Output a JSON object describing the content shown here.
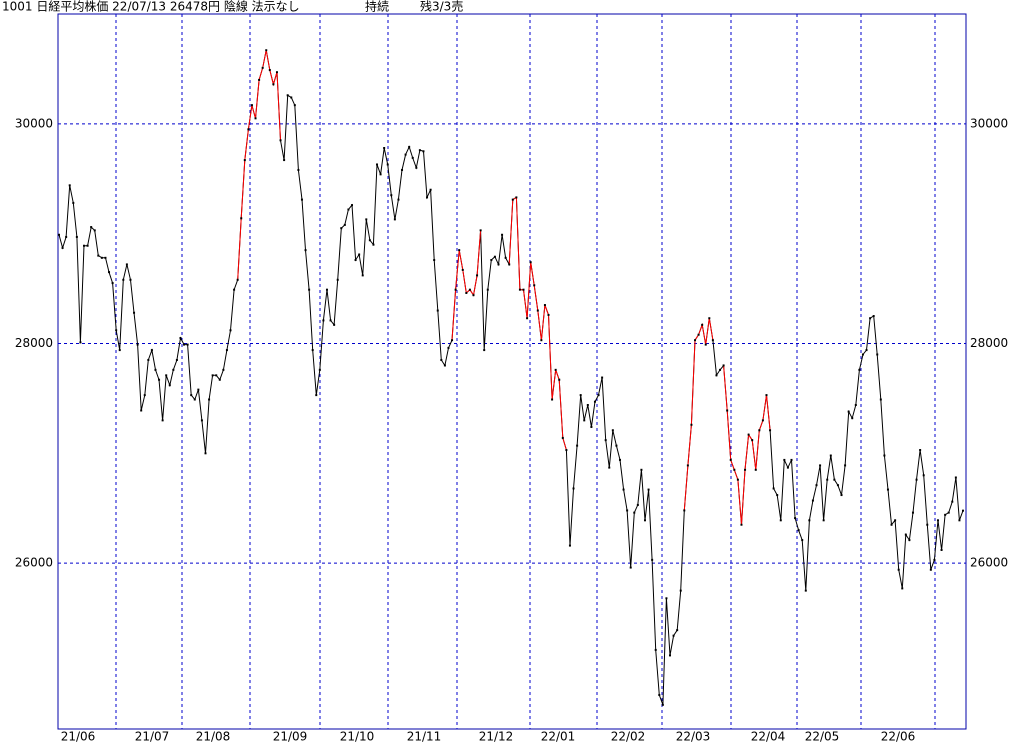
{
  "chart_data": {
    "type": "line",
    "title": "1001 日経平均株価 22/07/13 26478円 陰線 法示なし",
    "status": "持続",
    "position": "残3/3売",
    "month_labels": [
      "21/06",
      "21/07",
      "21/08",
      "21/09",
      "21/10",
      "21/11",
      "21/12",
      "22/01",
      "22/02",
      "22/03",
      "22/04",
      "22/05",
      "22/06"
    ],
    "ylim": [
      24490,
      31000
    ],
    "yticks": [
      26000,
      28000,
      30000
    ],
    "grid": true,
    "series": [
      {
        "color": "#000000",
        "values": [
          28990,
          28870,
          28970,
          29440,
          29280,
          28970,
          28010,
          28890,
          28890,
          29060,
          29030,
          28800,
          28780,
          28780,
          28650,
          28550,
          28120,
          27940,
          28580,
          28720,
          28580,
          28280,
          27990,
          27390,
          27530,
          27850,
          27940,
          27760,
          27670,
          27300,
          27710,
          27620,
          27760,
          27850,
          28050,
          27990,
          27990,
          27530,
          27490,
          27580,
          27300,
          27000,
          27490,
          27710,
          27710,
          27670,
          27760,
          27940,
          28120,
          28490,
          28580,
          29140,
          29670,
          29950,
          30170,
          30050,
          30400,
          30510,
          30670,
          30490,
          30360,
          30470,
          29850,
          29670,
          30260,
          30240,
          30170,
          29580,
          29310,
          28850,
          28490,
          27940,
          27530,
          27760,
          28210,
          28490,
          28210,
          28170,
          28580,
          29050,
          29080,
          29220,
          29260,
          28760,
          28810,
          28620,
          29130,
          28940,
          28900,
          29630,
          29540,
          29780,
          29630,
          29350,
          29130,
          29310,
          29580,
          29720,
          29790,
          29690,
          29600,
          29760,
          29750,
          29330,
          29400,
          28760,
          28300,
          27850,
          27800,
          27960,
          28030,
          28490,
          28850,
          28670,
          28460,
          28490,
          28440,
          28620,
          29030,
          27940,
          28490,
          28760,
          28790,
          28720,
          28990,
          28780,
          28720,
          29310,
          29330,
          28490,
          28490,
          28230,
          28740,
          28530,
          28300,
          28030,
          28350,
          28260,
          27490,
          27760,
          27670,
          27140,
          27030,
          26160,
          26680,
          27070,
          27530,
          27300,
          27440,
          27240,
          27470,
          27530,
          27690,
          27120,
          26870,
          27210,
          27070,
          26940,
          26670,
          26480,
          25960,
          26460,
          26530,
          26850,
          26390,
          26670,
          26030,
          25210,
          24800,
          24710,
          25680,
          25160,
          25340,
          25390,
          25750,
          26480,
          26890,
          27260,
          28030,
          28080,
          28170,
          27990,
          28230,
          28030,
          27710,
          27760,
          27800,
          27390,
          26940,
          26850,
          26760,
          26350,
          26850,
          27170,
          27120,
          26850,
          27210,
          27300,
          27530,
          27210,
          26680,
          26620,
          26390,
          26940,
          26870,
          26940,
          26410,
          26300,
          26210,
          25750,
          26390,
          26570,
          26710,
          26890,
          26390,
          26760,
          26980,
          26760,
          26710,
          26620,
          26890,
          27380,
          27320,
          27440,
          27760,
          27900,
          27940,
          28230,
          28250,
          27900,
          27490,
          26980,
          26670,
          26350,
          26390,
          25940,
          25770,
          26260,
          26210,
          26460,
          26760,
          27030,
          26800,
          26350,
          25940,
          26030,
          26390,
          26120,
          26440,
          26460,
          26560,
          26780,
          26390,
          26478
        ]
      },
      {
        "color": "#ff0000",
        "values": [
          null,
          null,
          null,
          null,
          null,
          null,
          null,
          null,
          null,
          null,
          null,
          null,
          null,
          null,
          null,
          null,
          null,
          null,
          null,
          null,
          null,
          null,
          null,
          null,
          null,
          null,
          null,
          null,
          null,
          null,
          null,
          null,
          null,
          null,
          null,
          null,
          null,
          null,
          null,
          null,
          null,
          null,
          null,
          null,
          null,
          null,
          null,
          null,
          null,
          null,
          28580,
          29140,
          29670,
          29950,
          30170,
          30050,
          30400,
          30510,
          30670,
          30490,
          30360,
          30470,
          29850,
          null,
          null,
          null,
          null,
          null,
          null,
          null,
          null,
          null,
          null,
          null,
          null,
          null,
          null,
          null,
          null,
          null,
          null,
          null,
          null,
          null,
          null,
          null,
          null,
          null,
          null,
          null,
          null,
          null,
          null,
          null,
          null,
          null,
          null,
          null,
          null,
          null,
          null,
          null,
          null,
          null,
          null,
          null,
          null,
          null,
          null,
          null,
          28030,
          28490,
          28850,
          28670,
          28460,
          28490,
          28440,
          28620,
          29030,
          null,
          null,
          null,
          null,
          null,
          null,
          null,
          28720,
          29310,
          29330,
          28490,
          28490,
          28230,
          28740,
          28530,
          28300,
          28030,
          28350,
          28260,
          27490,
          27760,
          27670,
          27140,
          27030,
          null,
          null,
          null,
          null,
          null,
          null,
          null,
          null,
          null,
          null,
          null,
          null,
          null,
          null,
          null,
          null,
          null,
          null,
          null,
          null,
          null,
          null,
          null,
          null,
          null,
          null,
          null,
          null,
          null,
          null,
          null,
          null,
          26480,
          26890,
          27260,
          28030,
          28080,
          28170,
          27990,
          28230,
          28030,
          null,
          null,
          27800,
          27390,
          26940,
          26850,
          26760,
          26350,
          26850,
          27170,
          27120,
          26850,
          27210,
          27300,
          27530,
          27210,
          null,
          null,
          null,
          null,
          null,
          null,
          null,
          null,
          null,
          null,
          null,
          null,
          null,
          null,
          null,
          null,
          null,
          null,
          null,
          null,
          null,
          null,
          null,
          null,
          null,
          null,
          null,
          null,
          null,
          null,
          null,
          null,
          null,
          null,
          null,
          null,
          null,
          null,
          null,
          null,
          null,
          null,
          null,
          null,
          null,
          null,
          null,
          null,
          null,
          null,
          null,
          null,
          null,
          null
        ]
      }
    ]
  }
}
